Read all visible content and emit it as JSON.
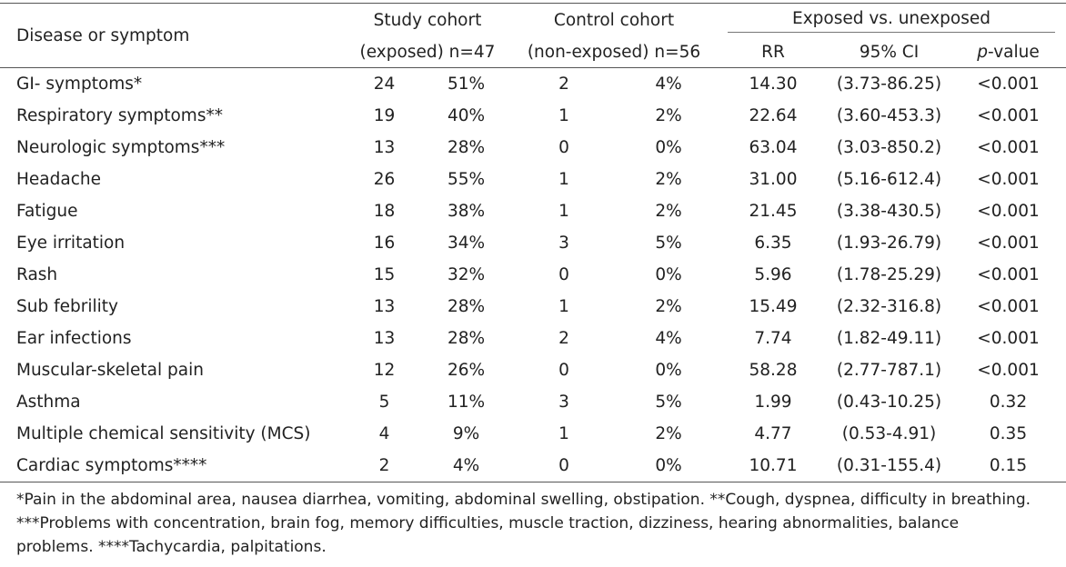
{
  "table": {
    "header": {
      "disease": "Disease or symptom",
      "study": "Study cohort",
      "study_sub": "(exposed) n=47",
      "control": "Control cohort",
      "control_sub": "(non-exposed) n=56",
      "comparison": "Exposed vs. unexposed",
      "rr": "RR",
      "ci": "95% CI",
      "p_italic": "p",
      "p_rest": "-value"
    },
    "rows": [
      [
        "GI- symptoms*",
        "24",
        "51%",
        "2",
        "4%",
        "14.30",
        "(3.73-86.25)",
        "<0.001"
      ],
      [
        "Respiratory symptoms**",
        "19",
        "40%",
        "1",
        "2%",
        "22.64",
        "(3.60-453.3)",
        "<0.001"
      ],
      [
        "Neurologic symptoms***",
        "13",
        "28%",
        "0",
        "0%",
        "63.04",
        "(3.03-850.2)",
        "<0.001"
      ],
      [
        "Headache",
        "26",
        "55%",
        "1",
        "2%",
        "31.00",
        "(5.16-612.4)",
        "<0.001"
      ],
      [
        "Fatigue",
        "18",
        "38%",
        "1",
        "2%",
        "21.45",
        "(3.38-430.5)",
        "<0.001"
      ],
      [
        "Eye irritation",
        "16",
        "34%",
        "3",
        "5%",
        "6.35",
        "(1.93-26.79)",
        "<0.001"
      ],
      [
        "Rash",
        "15",
        "32%",
        "0",
        "0%",
        "5.96",
        "(1.78-25.29)",
        "<0.001"
      ],
      [
        "Sub febrility",
        "13",
        "28%",
        "1",
        "2%",
        "15.49",
        "(2.32-316.8)",
        "<0.001"
      ],
      [
        "Ear infections",
        "13",
        "28%",
        "2",
        "4%",
        "7.74",
        "(1.82-49.11)",
        "<0.001"
      ],
      [
        "Muscular-skeletal pain",
        "12",
        "26%",
        "0",
        "0%",
        "58.28",
        "(2.77-787.1)",
        "<0.001"
      ],
      [
        "Asthma",
        "5",
        "11%",
        "3",
        "5%",
        "1.99",
        "(0.43-10.25)",
        "0.32"
      ],
      [
        "Multiple chemical sensitivity (MCS)",
        "4",
        "9%",
        "1",
        "2%",
        "4.77",
        "(0.53-4.91)",
        "0.35"
      ],
      [
        "Cardiac symptoms****",
        "2",
        "4%",
        "0",
        "0%",
        "10.71",
        "(0.31-155.4)",
        "0.15"
      ]
    ]
  },
  "footnote": "*Pain in the abdominal area, nausea diarrhea, vomiting, abdominal swelling, obstipation. **Cough, dyspnea, difficulty in breathing. ***Problems with concentration, brain fog, memory difficulties, muscle traction, dizziness, hearing abnormalities, balance problems. ****Tachycardia, palpitations."
}
